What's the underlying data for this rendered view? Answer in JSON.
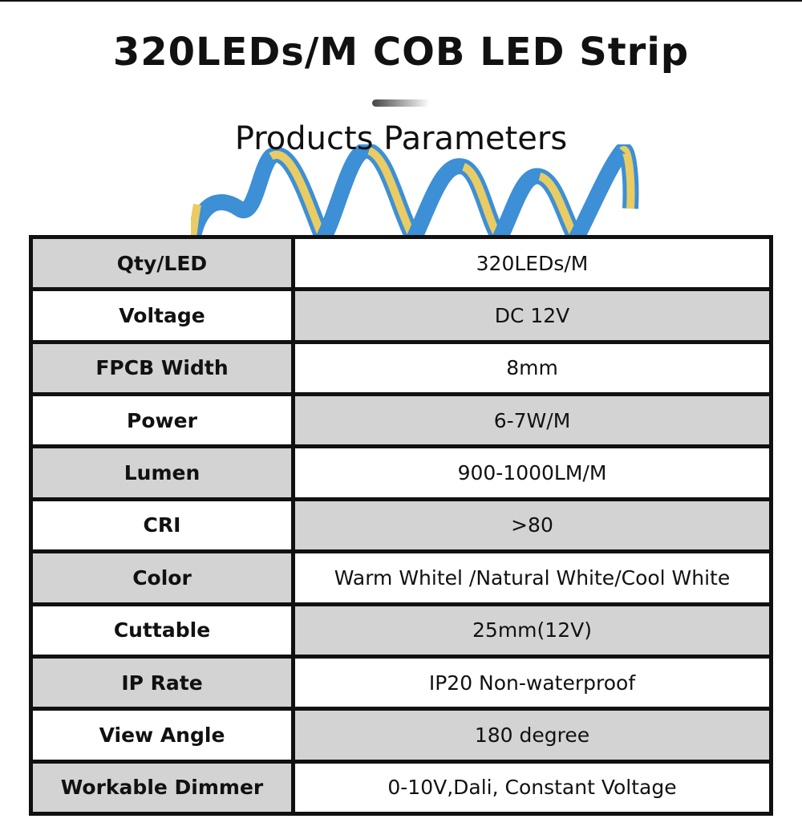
{
  "header": {
    "title": "320LEDs/M COB LED Strip",
    "subtitle": "Products Parameters"
  },
  "colors": {
    "strip_blue": "#3d8fd6",
    "led_yellow": "#e9cc63",
    "cell_grey": "#d3d3d3",
    "border": "#111111"
  },
  "specs": [
    {
      "label": "Qty/LED",
      "value": "320LEDs/M"
    },
    {
      "label": "Voltage",
      "value": "DC 12V"
    },
    {
      "label": "FPCB Width",
      "value": "8mm"
    },
    {
      "label": "Power",
      "value": "6-7W/M"
    },
    {
      "label": "Lumen",
      "value": "900-1000LM/M"
    },
    {
      "label": "CRI",
      "value": ">80"
    },
    {
      "label": "Color",
      "value": "Warm Whitel /Natural White/Cool White"
    },
    {
      "label": "Cuttable",
      "value": "25mm(12V)"
    },
    {
      "label": "IP Rate",
      "value": "IP20 Non-waterproof"
    },
    {
      "label": "View Angle",
      "value": "180 degree"
    },
    {
      "label": "Workable Dimmer",
      "value": "0-10V,Dali, Constant Voltage"
    }
  ]
}
